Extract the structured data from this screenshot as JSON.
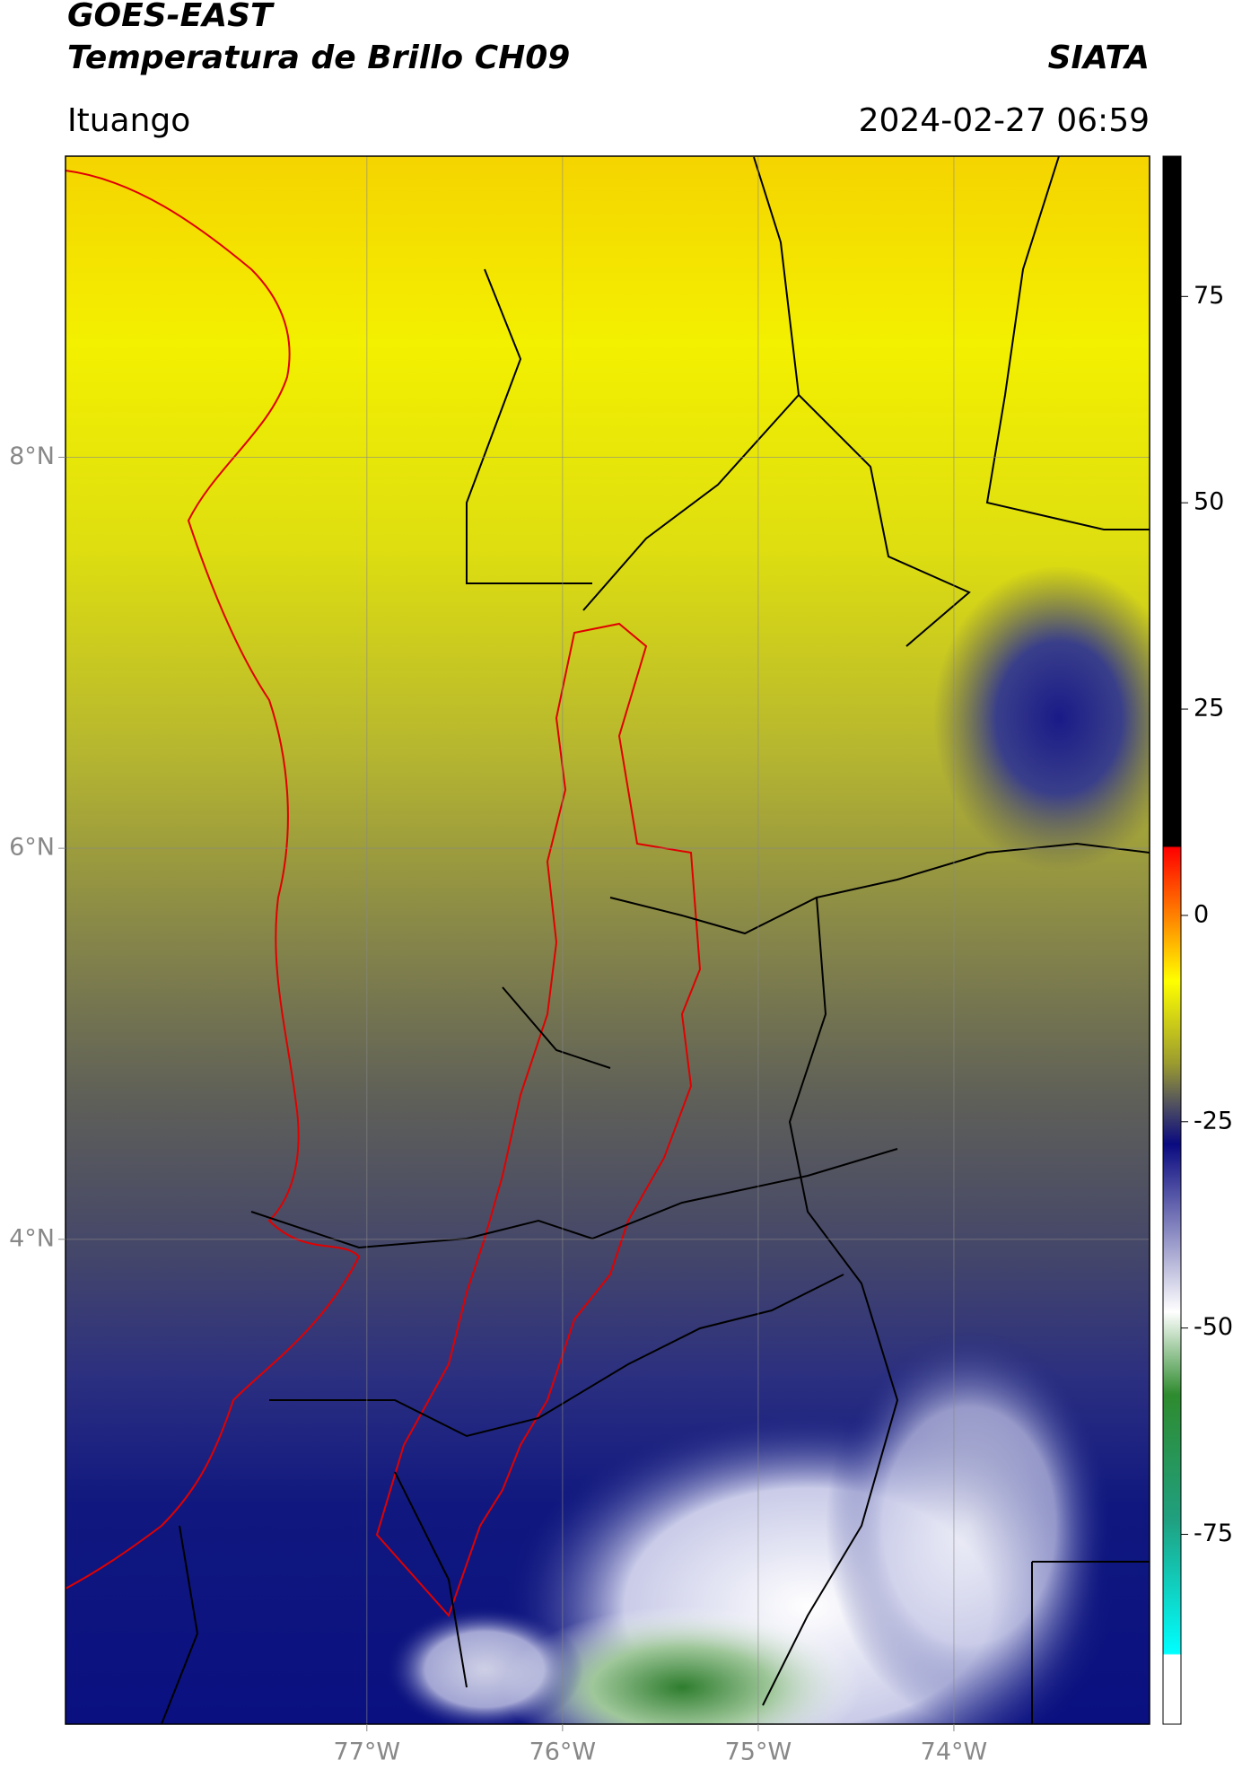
{
  "chart_data": {
    "type": "map",
    "title": "GOES-EAST",
    "subtitle": "Temperatura de Brillo CH09",
    "source": "SIATA",
    "region": "Ituango",
    "timestamp": "2024-02-27 06:59",
    "xlim": [
      -78.54,
      -73.0
    ],
    "ylim": [
      1.52,
      9.54
    ],
    "xticks": [
      {
        "value": -77,
        "label": "77°W"
      },
      {
        "value": -76,
        "label": "76°W"
      },
      {
        "value": -75,
        "label": "75°W"
      },
      {
        "value": -74,
        "label": "74°W"
      }
    ],
    "yticks": [
      {
        "value": 4,
        "label": "4°N"
      },
      {
        "value": 6,
        "label": "6°N"
      },
      {
        "value": 8,
        "label": "8°N"
      }
    ],
    "grid": true,
    "colorbar": {
      "lim": [
        -98,
        92
      ],
      "ticks": [
        -75,
        -50,
        -25,
        0,
        25,
        50,
        75
      ]
    }
  }
}
